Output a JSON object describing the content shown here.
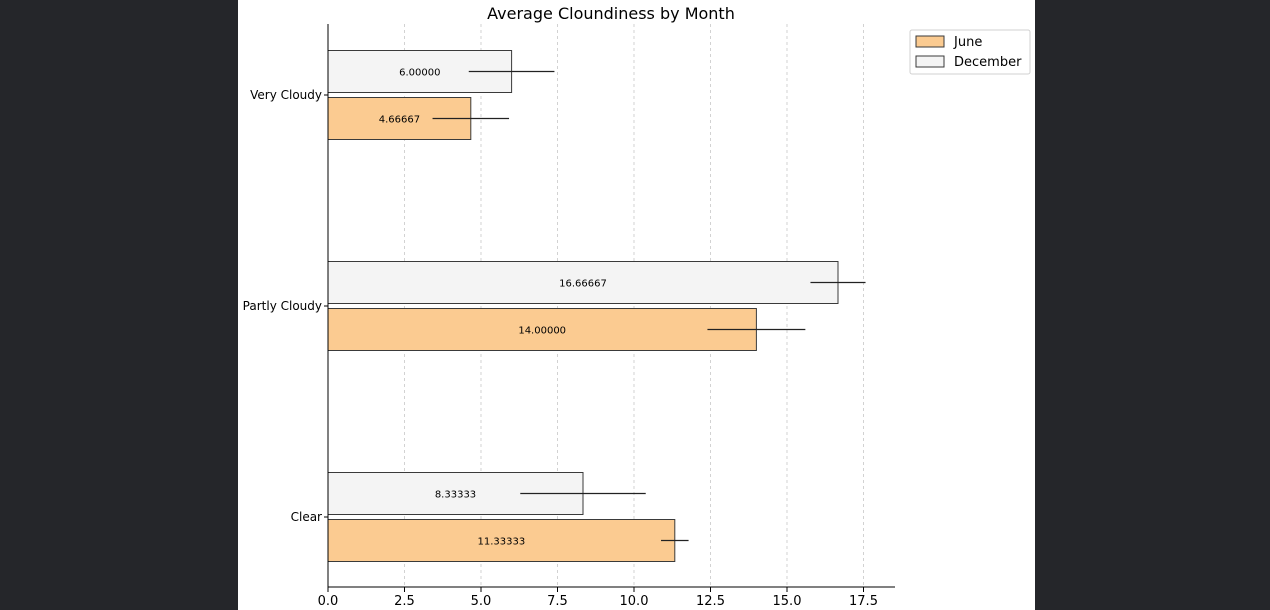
{
  "chart_data": {
    "type": "bar",
    "orientation": "horizontal",
    "title": "Average Cloundiness by Month",
    "xlabel": "",
    "ylabel": "",
    "categories": [
      "Clear",
      "Partly Cloudy",
      "Very Cloudy"
    ],
    "series": [
      {
        "name": "June",
        "color": "#fbcb91",
        "values": [
          11.33333,
          14.0,
          4.66667
        ],
        "value_labels": [
          "11.33333",
          "14.00000",
          "4.66667"
        ],
        "errors": [
          0.45,
          1.6,
          1.25
        ]
      },
      {
        "name": "December",
        "color": "#f4f4f4",
        "values": [
          8.33333,
          16.66667,
          6.0
        ],
        "value_labels": [
          "8.33333",
          "16.66667",
          "6.00000"
        ],
        "errors": [
          2.05,
          0.9,
          1.4
        ]
      }
    ],
    "xlim": [
      0,
      18.5
    ],
    "xticks": [
      0,
      2.5,
      5,
      7.5,
      10,
      12.5,
      15,
      17.5
    ],
    "xtick_labels": [
      "0.0",
      "2.5",
      "5.0",
      "7.5",
      "10.0",
      "12.5",
      "15.0",
      "17.5"
    ],
    "grid": "vertical dashed",
    "legend": "top-right",
    "edge_color": "#3a3a3a"
  }
}
